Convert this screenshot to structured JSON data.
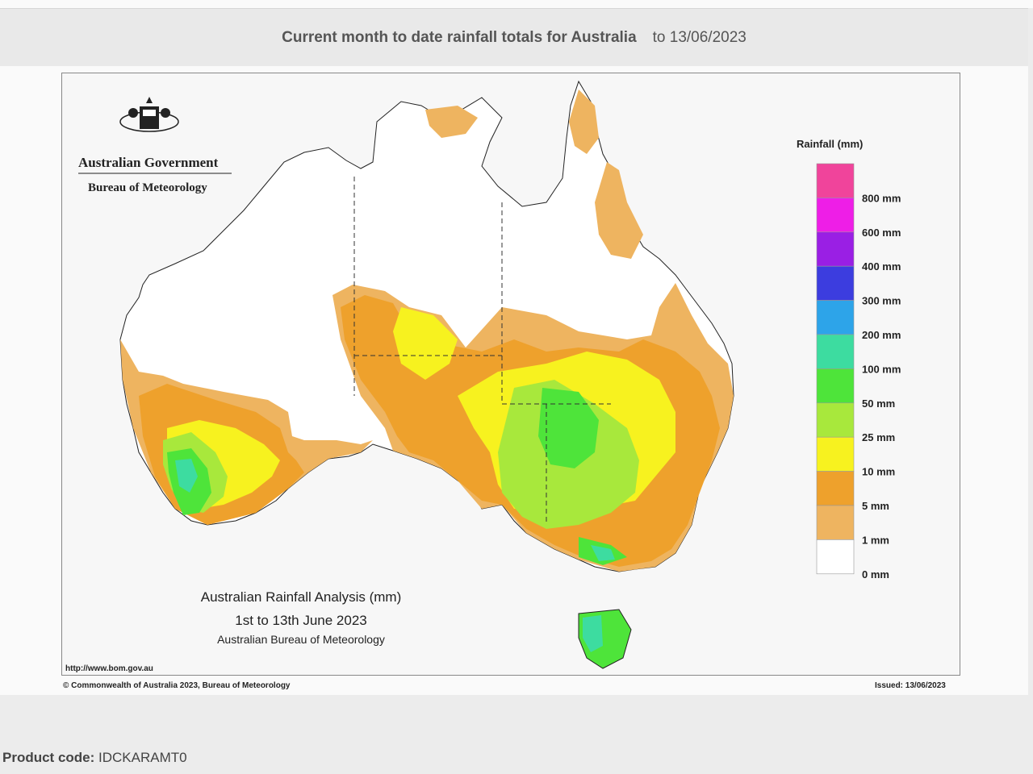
{
  "header": {
    "title": "Current month to date rainfall totals for Australia",
    "date": "to 13/06/2023"
  },
  "logo": {
    "line1": "Australian Government",
    "line2": "Bureau of Meteorology"
  },
  "map": {
    "caption_title": "Australian Rainfall Analysis (mm)",
    "caption_period": "1st to 13th June 2023",
    "caption_source": "Australian Bureau of Meteorology",
    "url": "http://www.bom.gov.au",
    "copyright": "© Commonwealth of Australia 2023, Bureau of Meteorology",
    "issued": "Issued: 13/06/2023"
  },
  "legend": {
    "title": "Rainfall (mm)",
    "colors": [
      "#f0449b",
      "#ee1ee7",
      "#9a1fe4",
      "#3c3ddf",
      "#2da4e9",
      "#3ddca0",
      "#4ee43a",
      "#a8e83c",
      "#f7f21f",
      "#eea12c",
      "#eeb460",
      "#ffffff"
    ],
    "labels": [
      "800 mm",
      "600 mm",
      "400 mm",
      "300 mm",
      "200 mm",
      "100 mm",
      "50 mm",
      "25 mm",
      "10 mm",
      "5 mm",
      "1 mm",
      "0 mm"
    ]
  },
  "footer": {
    "product_label": "Product code:",
    "product_code": "IDCKARAMT0"
  }
}
